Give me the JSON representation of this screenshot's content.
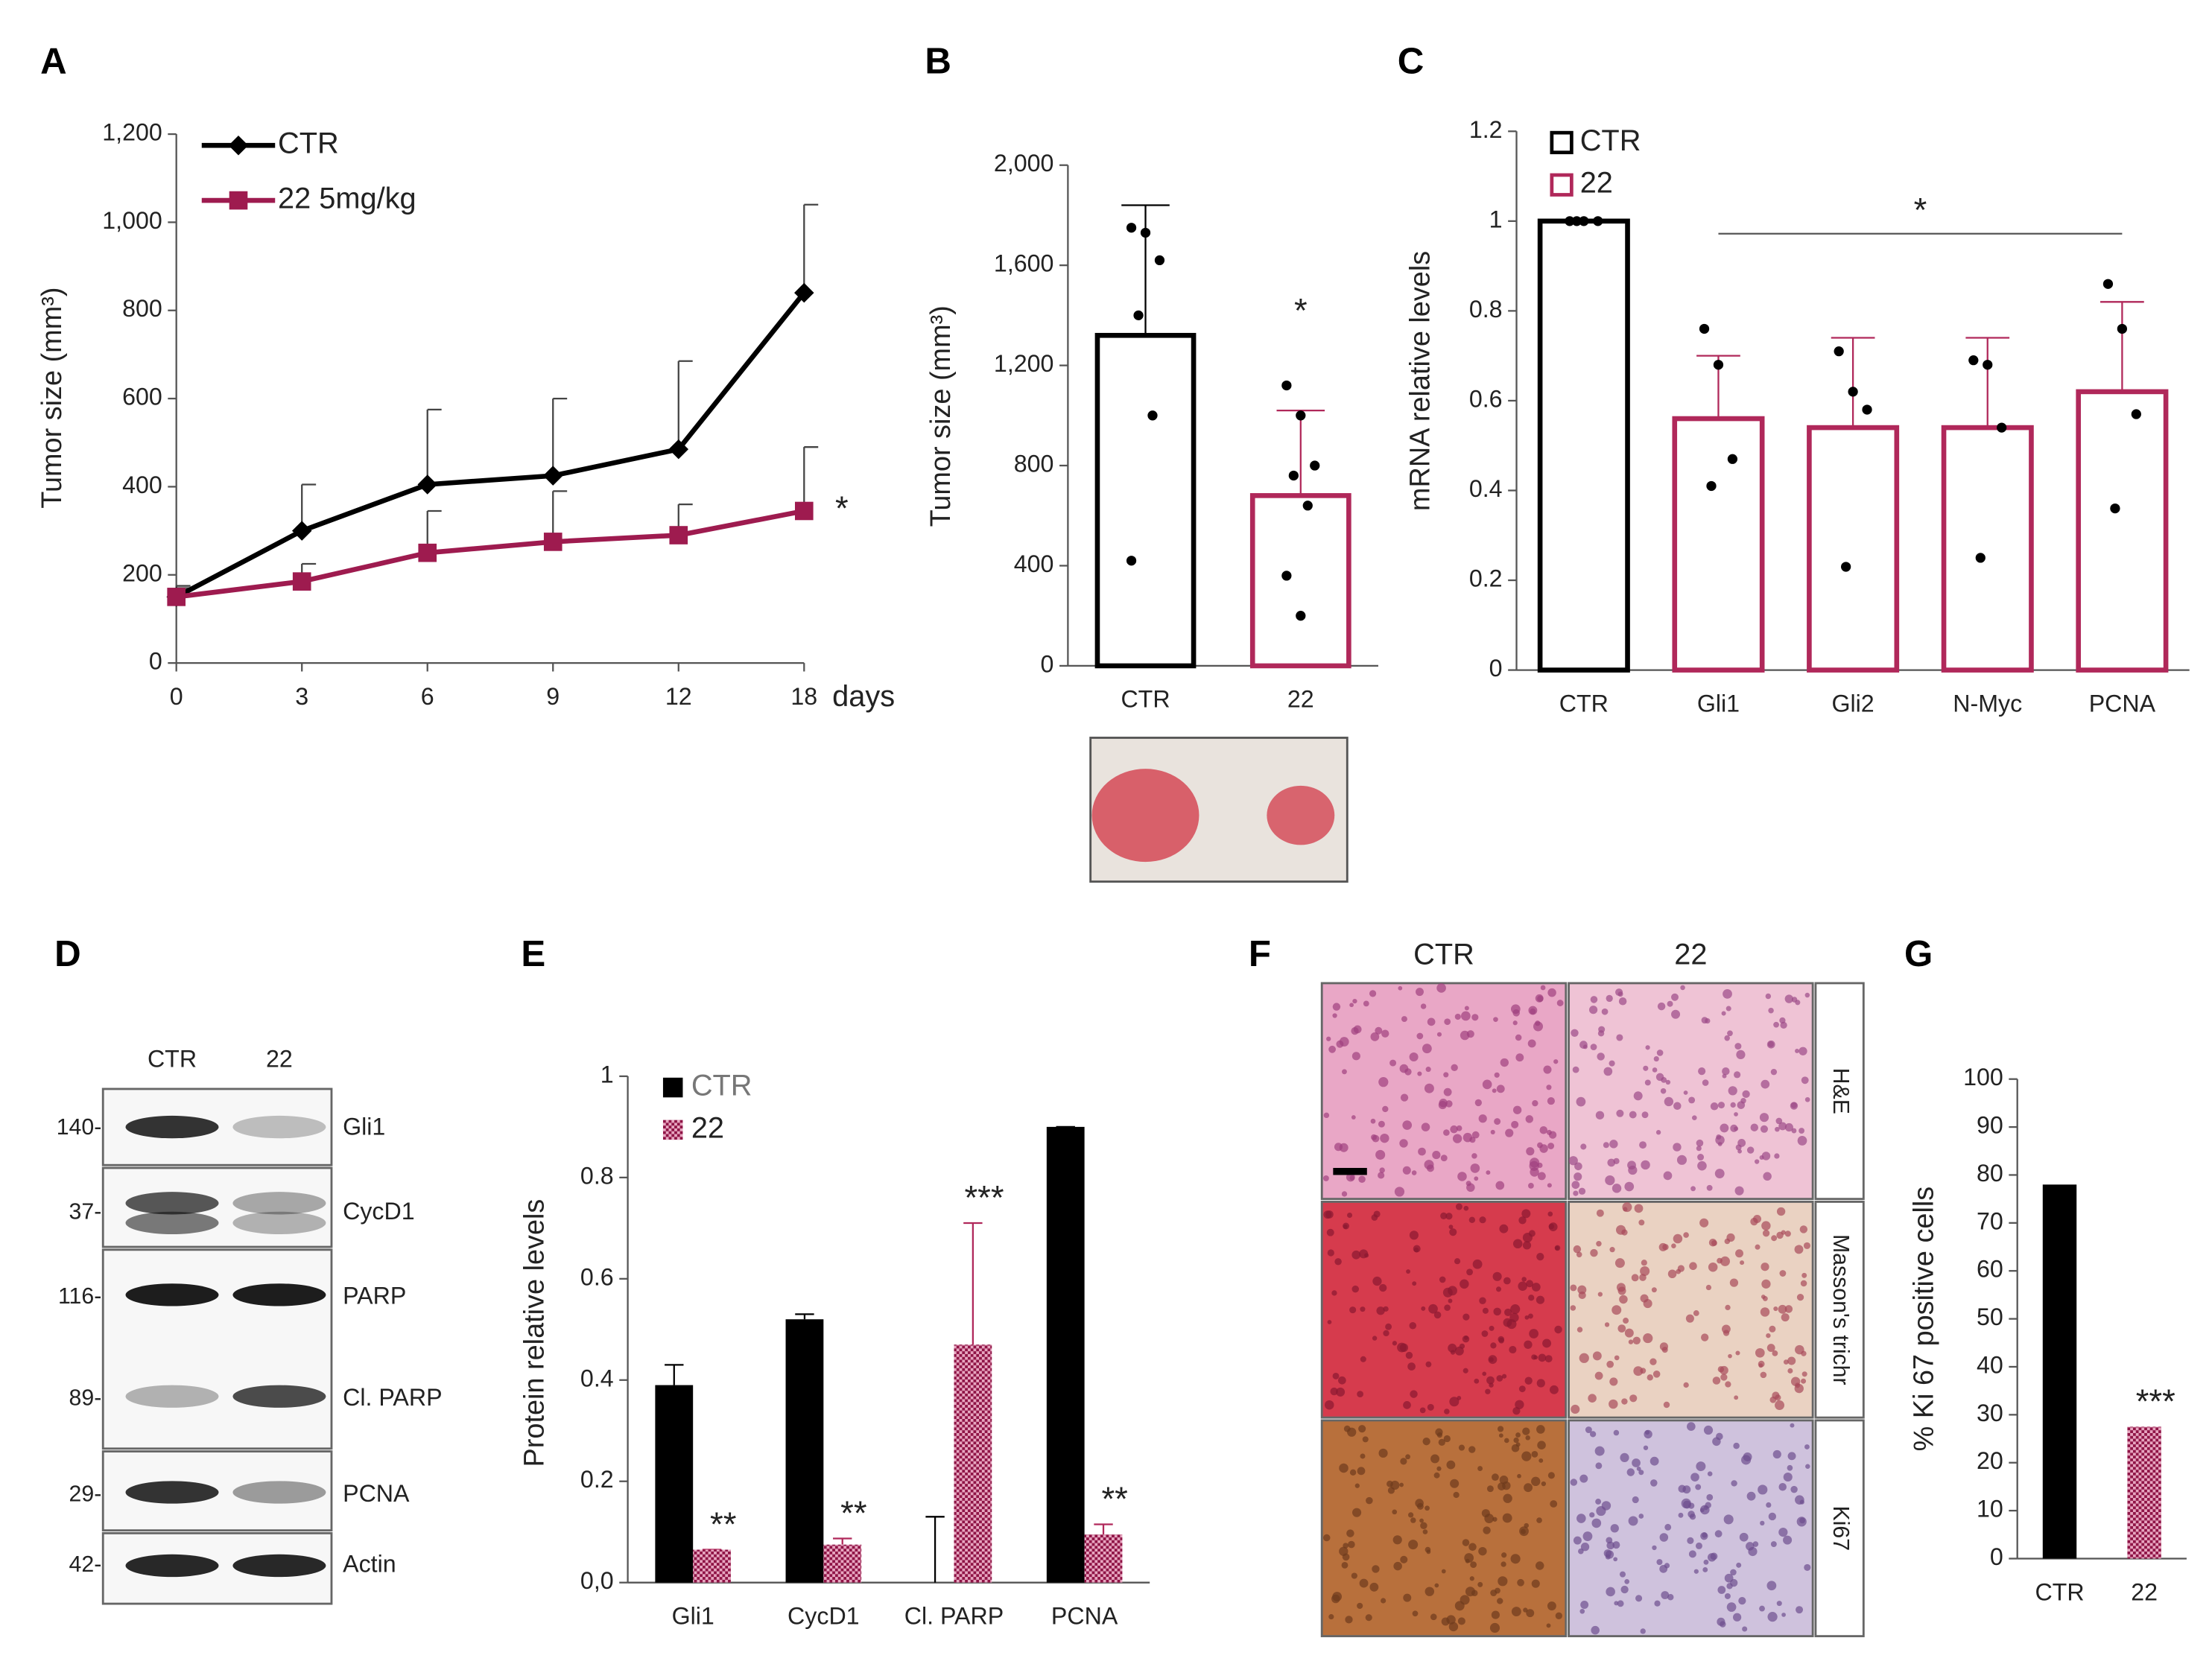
{
  "chart_data": [
    {
      "panel": "A",
      "type": "line",
      "ylabel": "Tumor size (mm³)",
      "xlabel": "days",
      "categories": [
        "0",
        "3",
        "6",
        "9",
        "12",
        "18"
      ],
      "ylim": [
        0,
        1200
      ],
      "yticks": [
        0,
        200,
        400,
        600,
        800,
        {
          "value": 1000,
          "label": "1,000"
        },
        {
          "value": 1200,
          "label": "1,200"
        }
      ],
      "legend": "upper left",
      "annotation": "*",
      "series": [
        {
          "name": "CTR",
          "color": "#000000",
          "marker": "diamond",
          "values": [
            150,
            300,
            405,
            425,
            485,
            840
          ],
          "errors": [
            25,
            105,
            170,
            175,
            200,
            200
          ]
        },
        {
          "name": "22 5mg/kg",
          "color": "#9e1b4f",
          "marker": "square",
          "values": [
            150,
            185,
            250,
            275,
            290,
            345
          ],
          "errors": [
            20,
            40,
            95,
            115,
            70,
            145
          ]
        }
      ]
    },
    {
      "panel": "B",
      "type": "bar",
      "bar_style": "outline",
      "ylabel": "Tumor size (mm³)",
      "categories": [
        "CTR",
        "22"
      ],
      "values": [
        1320,
        680
      ],
      "errors": [
        520,
        340
      ],
      "colors": [
        "#000000",
        "#b0285a"
      ],
      "points": [
        [
          1750,
          1730,
          1620,
          1400,
          1000,
          420
        ],
        [
          1120,
          1000,
          800,
          760,
          640,
          360,
          200
        ]
      ],
      "annotations": [
        null,
        "*"
      ],
      "ylim": [
        0,
        2000
      ],
      "yticks": [
        0,
        400,
        800,
        {
          "value": 1200,
          "label": "1,200"
        },
        {
          "value": 1600,
          "label": "1,600"
        },
        {
          "value": 2000,
          "label": "2,000"
        }
      ]
    },
    {
      "panel": "C",
      "type": "bar",
      "bar_style": "outline",
      "ylabel": "mRNA relative levels",
      "categories": [
        "CTR",
        "Gli1",
        "Gli2",
        "N-Myc",
        "PCNA"
      ],
      "ylim": [
        0,
        1.2
      ],
      "yticks": [
        0,
        0.2,
        0.4,
        0.6,
        0.8,
        1,
        1.2
      ],
      "legend": "upper left",
      "annotation": "*",
      "series": [
        {
          "name": "CTR",
          "color": "#000000",
          "values": [
            1,
            null,
            null,
            null,
            null
          ],
          "points": [
            [
              1,
              1,
              1,
              1
            ],
            null,
            null,
            null,
            null
          ]
        },
        {
          "name": "22",
          "color": "#b0285a",
          "values": [
            null,
            0.56,
            0.54,
            0.54,
            0.62
          ],
          "errors": [
            null,
            0.14,
            0.2,
            0.2,
            0.2
          ],
          "points": [
            null,
            [
              0.76,
              0.68,
              0.47,
              0.41
            ],
            [
              0.71,
              0.62,
              0.58,
              0.23
            ],
            [
              0.69,
              0.68,
              0.54,
              0.25
            ],
            [
              0.86,
              0.76,
              0.57,
              0.36
            ]
          ]
        }
      ]
    },
    {
      "panel": "E",
      "type": "bar",
      "bar_style": "filled",
      "ylabel": "Protein relative levels",
      "categories": [
        "Gli1",
        "CycD1",
        "Cl. PARP",
        "PCNA"
      ],
      "ylim": [
        0,
        1
      ],
      "yticks": [
        {
          "value": 0,
          "label": "0,0"
        },
        0.2,
        0.4,
        0.6,
        0.8,
        1
      ],
      "legend": "upper left",
      "series": [
        {
          "name": "CTR",
          "color": "#000000",
          "values": [
            0.39,
            0.52,
            0,
            0.9
          ],
          "errors": [
            0.04,
            0.01,
            0.13,
            0
          ]
        },
        {
          "name": "22",
          "color": "#b0285a",
          "pattern": "checker",
          "values": [
            0.065,
            0.075,
            0.47,
            0.095
          ],
          "errors": [
            0,
            0.012,
            0.24,
            0.02
          ],
          "annotations": [
            "**",
            "**",
            "***",
            "**"
          ]
        }
      ]
    },
    {
      "panel": "G",
      "type": "bar",
      "bar_style": "filled",
      "ylabel": "% Ki 67 positive cells",
      "categories": [
        "CTR",
        "22"
      ],
      "values": [
        78,
        27.5
      ],
      "colors": [
        "#000000",
        "#b0285a"
      ],
      "patterns": [
        null,
        "checker"
      ],
      "annotations": [
        null,
        "***"
      ],
      "ylim": [
        0,
        100
      ],
      "yticks": [
        0,
        10,
        20,
        30,
        40,
        50,
        60,
        70,
        80,
        90,
        100
      ]
    }
  ],
  "blot": {
    "panel": "D",
    "lanes": [
      "CTR",
      "22"
    ],
    "rows": [
      {
        "marker": "140-",
        "protein": "Gli1"
      },
      {
        "marker": "37-",
        "protein": "CycD1"
      },
      {
        "marker": "116-",
        "protein": "PARP"
      },
      {
        "marker": "89-",
        "protein": "Cl. PARP"
      },
      {
        "marker": "29-",
        "protein": "PCNA"
      },
      {
        "marker": "42-",
        "protein": "Actin"
      }
    ]
  },
  "histology": {
    "panel": "F",
    "columns": [
      "CTR",
      "22"
    ],
    "stains": [
      "H&E",
      "Masson's trichr",
      "Ki67"
    ]
  }
}
